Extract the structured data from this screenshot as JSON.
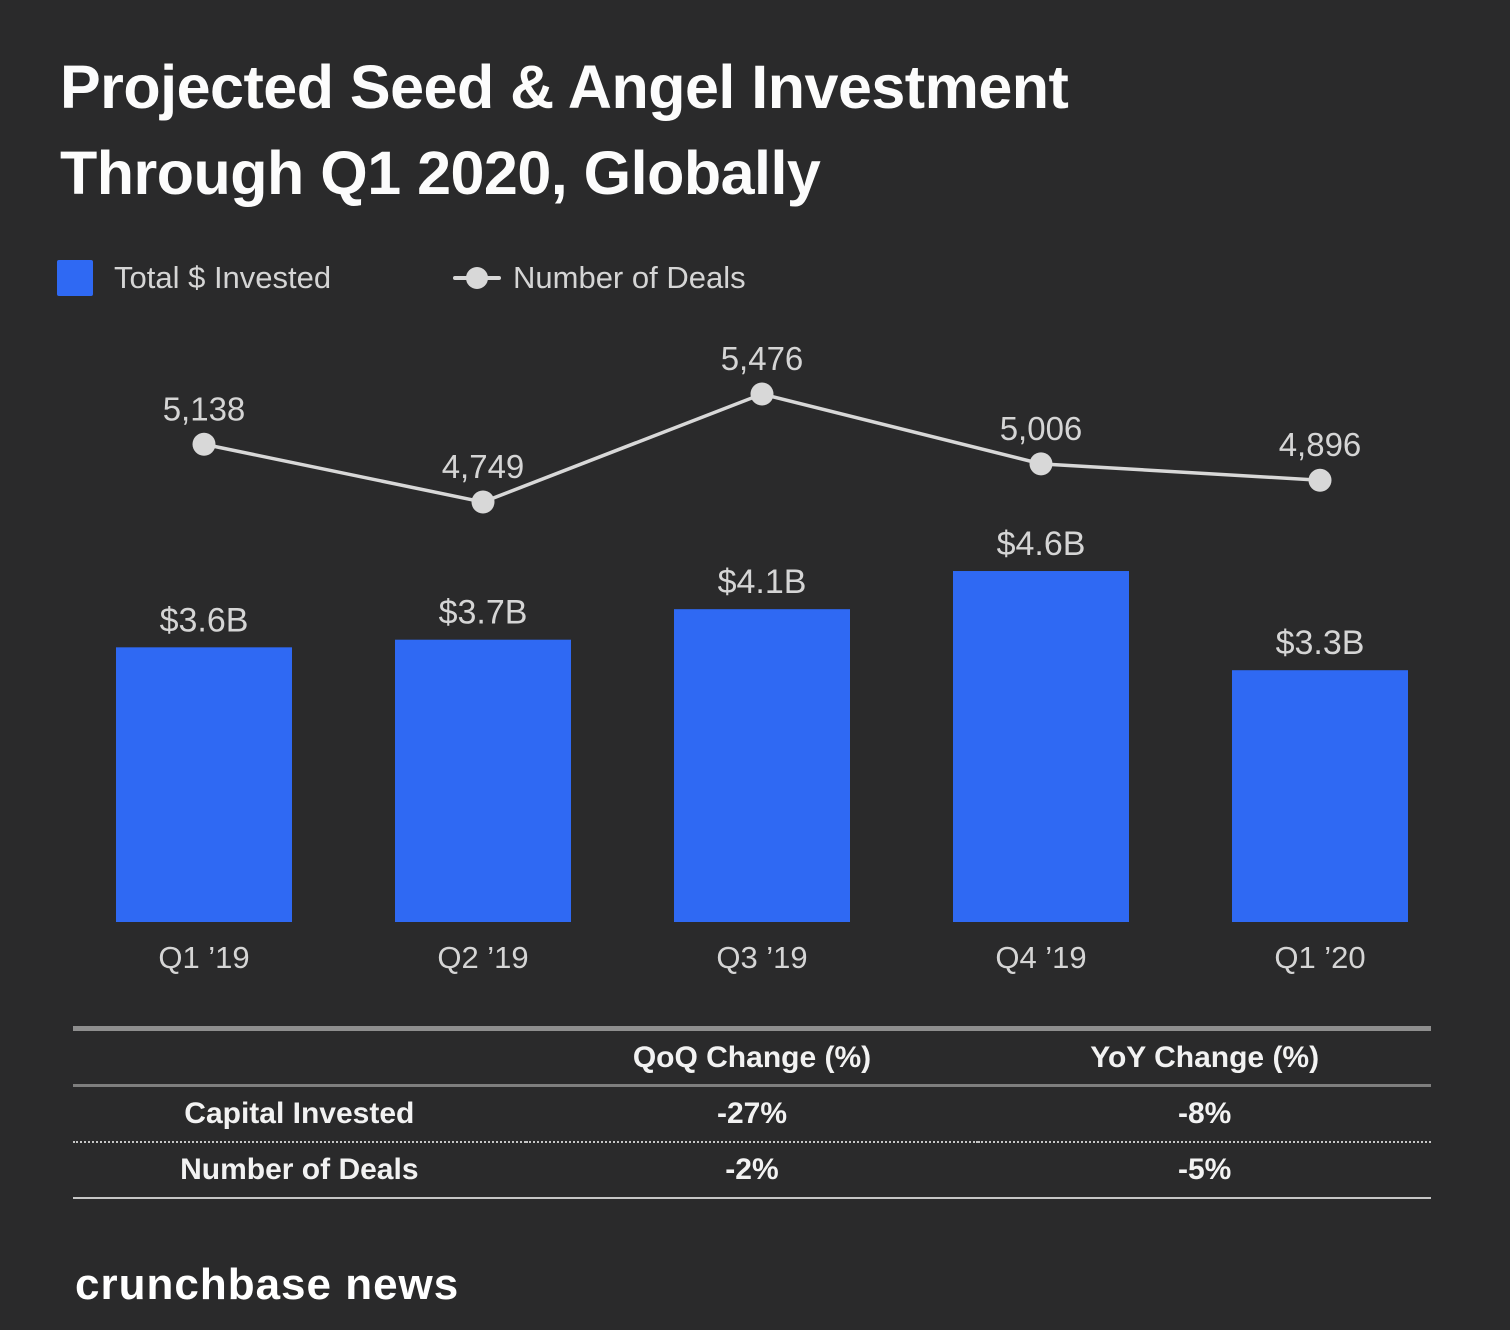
{
  "title": {
    "line1": "Projected Seed & Angel Investment",
    "line2": "Through Q1 2020, Globally"
  },
  "legend": {
    "invested_label": "Total $ Invested",
    "deals_label": "Number of Deals"
  },
  "chart_data": {
    "type": "bar",
    "subtype": "combo bar + line, axes hidden, value labels shown",
    "categories": [
      "Q1 ’19",
      "Q2 ’19",
      "Q3 ’19",
      "Q4 ’19",
      "Q1 ’20"
    ],
    "series": [
      {
        "name": "Total $ Invested",
        "type": "bar",
        "unit": "USD billions",
        "values": [
          3.6,
          3.7,
          4.1,
          4.6,
          3.3
        ],
        "labels": [
          "$3.6B",
          "$3.7B",
          "$4.1B",
          "$4.6B",
          "$3.3B"
        ],
        "color": "#2F69F3"
      },
      {
        "name": "Number of Deals",
        "type": "line",
        "values": [
          5138,
          4749,
          5476,
          5006,
          4896
        ],
        "labels": [
          "5,138",
          "4,749",
          "5,476",
          "5,006",
          "4,896"
        ],
        "color": "#D8D8D8"
      }
    ],
    "title": "Projected Seed & Angel Investment Through Q1 2020, Globally",
    "xlabel": "",
    "ylabel": "",
    "bar_axis_range_billions": [
      0,
      7.9
    ],
    "grid": false,
    "legend_position": "top-left"
  },
  "table": {
    "headers": [
      "",
      "QoQ Change (%)",
      "YoY Change (%)"
    ],
    "rows": [
      {
        "label": "Capital Invested",
        "qoq": "-27%",
        "yoy": "-8%"
      },
      {
        "label": "Number of Deals",
        "qoq": "-2%",
        "yoy": "-5%"
      }
    ]
  },
  "footer": {
    "logo_text": "crunchbase news"
  },
  "colors": {
    "background": "#2A2A2B",
    "bar_blue": "#2F69F3",
    "line_gray": "#D8D8D8",
    "label_gray": "#D5D5D5",
    "title_white": "#FCFCFC",
    "table_text": "#F2F2F2",
    "table_border": "#8E8E8E",
    "table_border_mid": "#7E7E7E",
    "table_border_light": "#C6C6C6"
  }
}
